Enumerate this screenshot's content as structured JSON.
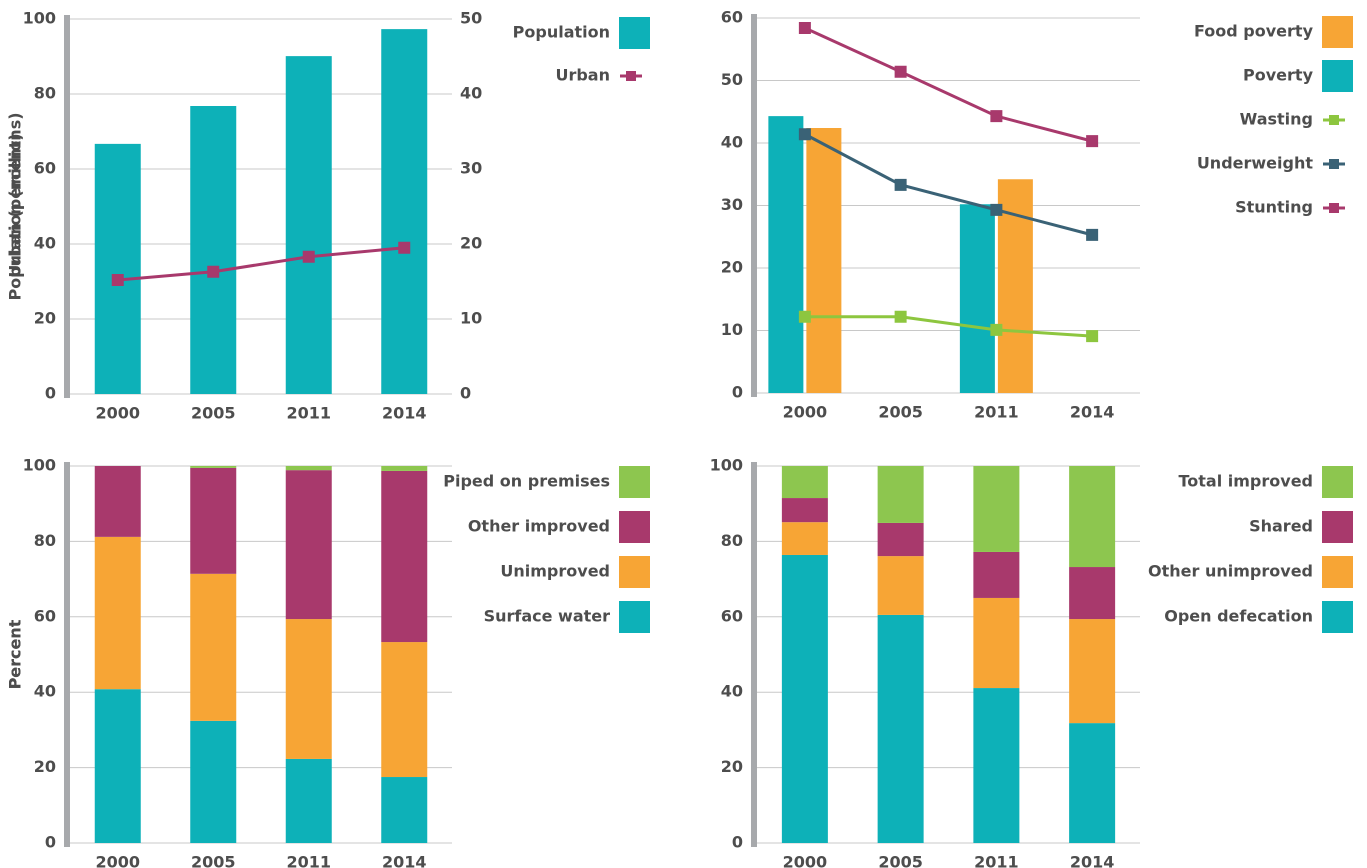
{
  "chart_data": [
    {
      "type": "combo",
      "y_label": "Population (millions)",
      "categories": [
        "2000",
        "2005",
        "2011",
        "2014"
      ],
      "ylim": [
        0,
        100
      ],
      "yticks": [
        0,
        20,
        40,
        60,
        80,
        100
      ],
      "y2lim": [
        0,
        50
      ],
      "y2ticks": [
        0,
        10,
        20,
        30,
        40,
        50
      ],
      "grid": true,
      "series": [
        {
          "name": "Population",
          "kind": "bar",
          "color": "#0db1b8",
          "values": [
            66.7,
            76.8,
            90.1,
            97.3
          ]
        },
        {
          "name": "Urban",
          "kind": "line",
          "axis": "y2",
          "color": "#a8396c",
          "values": [
            15.2,
            16.3,
            18.3,
            19.5
          ]
        }
      ]
    },
    {
      "type": "combo",
      "y_label": "Urban (percent)",
      "categories": [
        "2000",
        "2005",
        "2011",
        "2014"
      ],
      "ylim": [
        0,
        60
      ],
      "yticks": [
        0,
        10,
        20,
        30,
        40,
        50,
        60
      ],
      "grid": true,
      "series": [
        {
          "name": "Food poverty",
          "kind": "bar",
          "color": "#f7a535",
          "values": [
            42.4,
            null,
            34.2,
            null
          ]
        },
        {
          "name": "Poverty",
          "kind": "bar",
          "color": "#0db1b8",
          "values": [
            44.3,
            null,
            30.2,
            null
          ]
        },
        {
          "name": "Wasting",
          "kind": "line",
          "color": "#8dc63f",
          "values": [
            12.2,
            12.2,
            10.1,
            9.1
          ]
        },
        {
          "name": "Underweight",
          "kind": "line",
          "color": "#3a6276",
          "values": [
            41.4,
            33.3,
            29.3,
            25.3
          ]
        },
        {
          "name": "Stunting",
          "kind": "line",
          "color": "#a8396c",
          "values": [
            58.4,
            51.4,
            44.3,
            40.3
          ]
        }
      ]
    },
    {
      "type": "stacked",
      "y_label": "Percent",
      "categories": [
        "2000",
        "2005",
        "2011",
        "2014"
      ],
      "ylim": [
        0,
        100
      ],
      "yticks": [
        0,
        20,
        40,
        60,
        80,
        100
      ],
      "grid": true,
      "series": [
        {
          "name": "Piped on premises",
          "color": "#8dc64f",
          "values": [
            0,
            0.5,
            1.1,
            1.3
          ]
        },
        {
          "name": "Other improved",
          "color": "#a8396c",
          "values": [
            18.8,
            28.1,
            39.5,
            45.4
          ]
        },
        {
          "name": "Unimproved",
          "color": "#f7a535",
          "values": [
            40.4,
            39.0,
            37.1,
            35.8
          ]
        },
        {
          "name": "Surface water",
          "color": "#0db1b8",
          "values": [
            40.8,
            32.4,
            22.3,
            17.5
          ]
        }
      ]
    },
    {
      "type": "stacked",
      "y_label": "Percent",
      "categories": [
        "2000",
        "2005",
        "2011",
        "2014"
      ],
      "ylim": [
        0,
        100
      ],
      "yticks": [
        0,
        20,
        40,
        60,
        80,
        100
      ],
      "grid": true,
      "series": [
        {
          "name": "Total improved",
          "color": "#8dc64f",
          "values": [
            8.5,
            15.1,
            22.8,
            26.8
          ]
        },
        {
          "name": "Shared",
          "color": "#a8396c",
          "values": [
            6.4,
            8.8,
            12.2,
            13.8
          ]
        },
        {
          "name": "Other unimproved",
          "color": "#f7a535",
          "values": [
            8.7,
            15.6,
            23.9,
            27.6
          ]
        },
        {
          "name": "Open defecation",
          "color": "#0db1b8",
          "values": [
            76.4,
            60.5,
            41.1,
            31.8
          ]
        }
      ]
    }
  ]
}
